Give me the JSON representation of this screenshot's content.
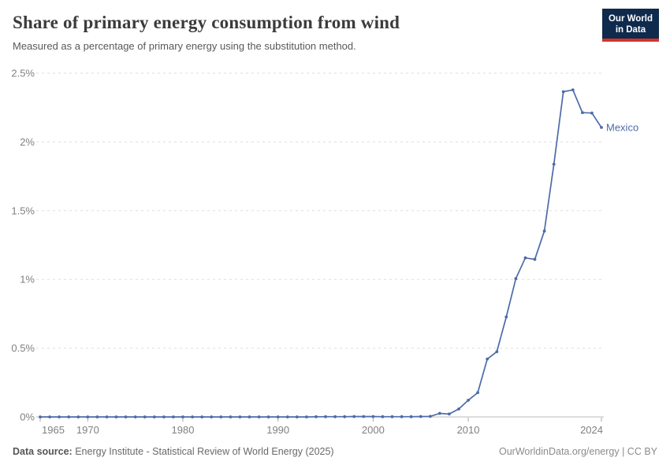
{
  "header": {
    "title": "Share of primary energy consumption from wind",
    "subtitle": "Measured as a percentage of primary energy using the substitution method."
  },
  "logo": {
    "line1": "Our World",
    "line2": "in Data"
  },
  "footer": {
    "datasource_label": "Data source:",
    "datasource_text": " Energy Institute - Statistical Review of World Energy (2025)",
    "rights": "OurWorldinData.org/energy | CC BY"
  },
  "colors": {
    "line": "#4c6ba8",
    "grid": "#dedede",
    "axis": "#bababa",
    "tick_mark": "#a8a8a8",
    "tick_text": "#808080",
    "logo_bg": "#0e2a4d",
    "logo_accent": "#d0342c"
  },
  "chart_data": {
    "type": "line",
    "title": "Share of primary energy consumption from wind",
    "subtitle": "Measured as a percentage of primary energy using the substitution method.",
    "xlabel": "",
    "ylabel": "",
    "xlim": [
      1965,
      2024
    ],
    "ylim": [
      0,
      2.5
    ],
    "grid": "horizontal-dashed",
    "legend": "end-of-line-label",
    "x_ticks": [
      {
        "year": 1965,
        "label": "1965",
        "anchor": "start"
      },
      {
        "year": 1970,
        "label": "1970",
        "anchor": "middle"
      },
      {
        "year": 1980,
        "label": "1980",
        "anchor": "middle"
      },
      {
        "year": 1990,
        "label": "1990",
        "anchor": "middle"
      },
      {
        "year": 2000,
        "label": "2000",
        "anchor": "middle"
      },
      {
        "year": 2010,
        "label": "2010",
        "anchor": "middle"
      },
      {
        "year": 2024,
        "label": "2024",
        "anchor": "end"
      }
    ],
    "y_ticks": [
      {
        "value": 0,
        "label": "0%"
      },
      {
        "value": 0.5,
        "label": "0.5%"
      },
      {
        "value": 1,
        "label": "1%"
      },
      {
        "value": 1.5,
        "label": "1.5%"
      },
      {
        "value": 2,
        "label": "2%"
      },
      {
        "value": 2.5,
        "label": "2.5%"
      }
    ],
    "series": [
      {
        "name": "Mexico",
        "color": "#4c6ba8",
        "years": [
          1965,
          1966,
          1967,
          1968,
          1969,
          1970,
          1971,
          1972,
          1973,
          1974,
          1975,
          1976,
          1977,
          1978,
          1979,
          1980,
          1981,
          1982,
          1983,
          1984,
          1985,
          1986,
          1987,
          1988,
          1989,
          1990,
          1991,
          1992,
          1993,
          1994,
          1995,
          1996,
          1997,
          1998,
          1999,
          2000,
          2001,
          2002,
          2003,
          2004,
          2005,
          2006,
          2007,
          2008,
          2009,
          2010,
          2011,
          2012,
          2013,
          2014,
          2015,
          2016,
          2017,
          2018,
          2019,
          2020,
          2021,
          2022,
          2023,
          2024
        ],
        "values": [
          0,
          0,
          0,
          0,
          0,
          0,
          0,
          0,
          0,
          0,
          0,
          0,
          0,
          0,
          0,
          0,
          0,
          0,
          0,
          0,
          0,
          0,
          0,
          0,
          0,
          0,
          0,
          0,
          0,
          0.001,
          0.002,
          0.002,
          0.002,
          0.003,
          0.003,
          0.003,
          0.002,
          0.002,
          0.002,
          0.002,
          0.003,
          0.004,
          0.026,
          0.021,
          0.058,
          0.121,
          0.177,
          0.421,
          0.474,
          0.727,
          1.006,
          1.157,
          1.146,
          1.352,
          1.838,
          2.365,
          2.378,
          2.213,
          2.21,
          2.105
        ]
      }
    ]
  }
}
